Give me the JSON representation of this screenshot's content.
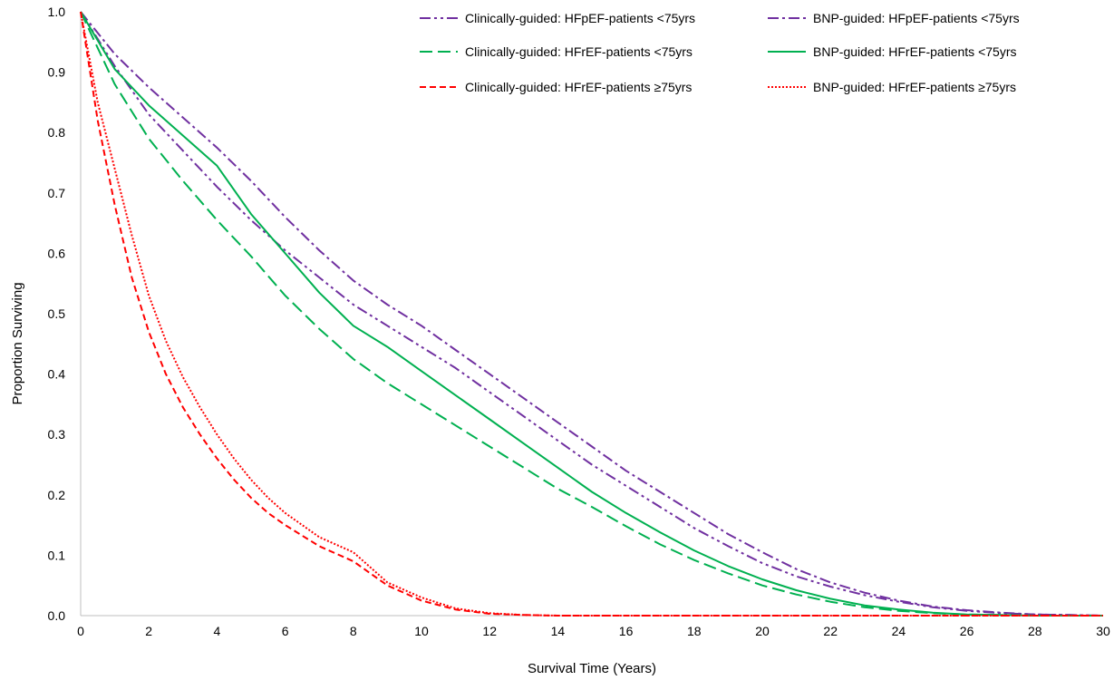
{
  "chart_data": {
    "type": "line",
    "title": "",
    "xlabel": "Survival Time (Years)",
    "ylabel": "Proportion Surviving",
    "xlim": [
      0,
      30
    ],
    "ylim": [
      0,
      1
    ],
    "x_ticks": [
      "0",
      "2",
      "4",
      "6",
      "8",
      "10",
      "12",
      "14",
      "16",
      "18",
      "20",
      "22",
      "24",
      "26",
      "28",
      "30"
    ],
    "y_ticks": [
      "0.0",
      "0.1",
      "0.2",
      "0.3",
      "0.4",
      "0.5",
      "0.6",
      "0.7",
      "0.8",
      "0.9",
      "1.0"
    ],
    "grid": false,
    "legend_position": "top-right",
    "series": [
      {
        "name": "Clinically-guided: HFpEF-patients <75yrs",
        "color": "#7030a0",
        "style": "dash-dot-dot",
        "points": [
          [
            0,
            1.0
          ],
          [
            1,
            0.91
          ],
          [
            2,
            0.83
          ],
          [
            3,
            0.77
          ],
          [
            4,
            0.71
          ],
          [
            5,
            0.655
          ],
          [
            6,
            0.605
          ],
          [
            7,
            0.56
          ],
          [
            8,
            0.515
          ],
          [
            9,
            0.48
          ],
          [
            10,
            0.445
          ],
          [
            11,
            0.41
          ],
          [
            12,
            0.37
          ],
          [
            13,
            0.33
          ],
          [
            14,
            0.29
          ],
          [
            15,
            0.25
          ],
          [
            16,
            0.215
          ],
          [
            17,
            0.18
          ],
          [
            18,
            0.145
          ],
          [
            19,
            0.115
          ],
          [
            20,
            0.087
          ],
          [
            21,
            0.065
          ],
          [
            22,
            0.048
          ],
          [
            23,
            0.034
          ],
          [
            24,
            0.023
          ],
          [
            25,
            0.014
          ],
          [
            26,
            0.008
          ],
          [
            27,
            0.004
          ],
          [
            28,
            0.002
          ],
          [
            29,
            0.001
          ],
          [
            30,
            0.0
          ]
        ]
      },
      {
        "name": "BNP-guided: HFpEF-patients <75yrs",
        "color": "#7030a0",
        "style": "dash-dot",
        "points": [
          [
            0,
            1.0
          ],
          [
            1,
            0.93
          ],
          [
            2,
            0.875
          ],
          [
            3,
            0.825
          ],
          [
            4,
            0.775
          ],
          [
            5,
            0.72
          ],
          [
            6,
            0.66
          ],
          [
            7,
            0.605
          ],
          [
            8,
            0.555
          ],
          [
            9,
            0.515
          ],
          [
            10,
            0.48
          ],
          [
            11,
            0.44
          ],
          [
            12,
            0.4
          ],
          [
            13,
            0.36
          ],
          [
            14,
            0.32
          ],
          [
            15,
            0.28
          ],
          [
            16,
            0.24
          ],
          [
            17,
            0.205
          ],
          [
            18,
            0.17
          ],
          [
            19,
            0.135
          ],
          [
            20,
            0.105
          ],
          [
            21,
            0.077
          ],
          [
            22,
            0.055
          ],
          [
            23,
            0.038
          ],
          [
            24,
            0.025
          ],
          [
            25,
            0.015
          ],
          [
            26,
            0.009
          ],
          [
            27,
            0.005
          ],
          [
            28,
            0.002
          ],
          [
            29,
            0.001
          ],
          [
            30,
            0.0
          ]
        ]
      },
      {
        "name": "Clinically-guided: HFrEF-patients <75yrs",
        "color": "#00b050",
        "style": "long-dash",
        "points": [
          [
            0,
            1.0
          ],
          [
            1,
            0.88
          ],
          [
            2,
            0.79
          ],
          [
            3,
            0.72
          ],
          [
            4,
            0.655
          ],
          [
            5,
            0.595
          ],
          [
            6,
            0.53
          ],
          [
            7,
            0.475
          ],
          [
            8,
            0.425
          ],
          [
            9,
            0.385
          ],
          [
            10,
            0.35
          ],
          [
            11,
            0.315
          ],
          [
            12,
            0.28
          ],
          [
            13,
            0.245
          ],
          [
            14,
            0.21
          ],
          [
            15,
            0.18
          ],
          [
            16,
            0.148
          ],
          [
            17,
            0.118
          ],
          [
            18,
            0.092
          ],
          [
            19,
            0.07
          ],
          [
            20,
            0.05
          ],
          [
            21,
            0.035
          ],
          [
            22,
            0.023
          ],
          [
            23,
            0.014
          ],
          [
            24,
            0.008
          ],
          [
            25,
            0.004
          ],
          [
            26,
            0.002
          ],
          [
            27,
            0.001
          ],
          [
            28,
            0.0
          ],
          [
            29,
            0.0
          ],
          [
            30,
            0.0
          ]
        ]
      },
      {
        "name": "BNP-guided: HFrEF-patients <75yrs",
        "color": "#00b050",
        "style": "solid",
        "points": [
          [
            0,
            1.0
          ],
          [
            1,
            0.905
          ],
          [
            2,
            0.845
          ],
          [
            3,
            0.795
          ],
          [
            4,
            0.745
          ],
          [
            5,
            0.665
          ],
          [
            6,
            0.6
          ],
          [
            7,
            0.535
          ],
          [
            8,
            0.48
          ],
          [
            9,
            0.445
          ],
          [
            10,
            0.405
          ],
          [
            11,
            0.365
          ],
          [
            12,
            0.325
          ],
          [
            13,
            0.285
          ],
          [
            14,
            0.245
          ],
          [
            15,
            0.205
          ],
          [
            16,
            0.17
          ],
          [
            17,
            0.138
          ],
          [
            18,
            0.108
          ],
          [
            19,
            0.082
          ],
          [
            20,
            0.06
          ],
          [
            21,
            0.042
          ],
          [
            22,
            0.028
          ],
          [
            23,
            0.017
          ],
          [
            24,
            0.01
          ],
          [
            25,
            0.005
          ],
          [
            26,
            0.002
          ],
          [
            27,
            0.001
          ],
          [
            28,
            0.0
          ],
          [
            29,
            0.0
          ],
          [
            30,
            0.0
          ]
        ]
      },
      {
        "name": "Clinically-guided: HFrEF-patients ≥75yrs",
        "color": "#ff0000",
        "style": "dash",
        "points": [
          [
            0,
            1.0
          ],
          [
            0.5,
            0.82
          ],
          [
            1,
            0.68
          ],
          [
            1.5,
            0.56
          ],
          [
            2,
            0.47
          ],
          [
            2.5,
            0.4
          ],
          [
            3,
            0.345
          ],
          [
            3.5,
            0.3
          ],
          [
            4,
            0.26
          ],
          [
            4.5,
            0.225
          ],
          [
            5,
            0.195
          ],
          [
            5.5,
            0.17
          ],
          [
            6,
            0.15
          ],
          [
            7,
            0.115
          ],
          [
            8,
            0.09
          ],
          [
            8.5,
            0.07
          ],
          [
            9,
            0.05
          ],
          [
            10,
            0.025
          ],
          [
            11,
            0.01
          ],
          [
            12,
            0.003
          ],
          [
            13,
            0.001
          ],
          [
            14,
            0.0
          ],
          [
            30,
            0.0
          ]
        ]
      },
      {
        "name": "BNP-guided: HFrEF-patients ≥75yrs",
        "color": "#ff0000",
        "style": "dot",
        "points": [
          [
            0,
            1.0
          ],
          [
            0.5,
            0.85
          ],
          [
            1,
            0.74
          ],
          [
            1.5,
            0.63
          ],
          [
            2,
            0.53
          ],
          [
            2.5,
            0.455
          ],
          [
            3,
            0.395
          ],
          [
            3.5,
            0.345
          ],
          [
            4,
            0.3
          ],
          [
            4.5,
            0.26
          ],
          [
            5,
            0.225
          ],
          [
            5.5,
            0.195
          ],
          [
            6,
            0.17
          ],
          [
            7,
            0.13
          ],
          [
            8,
            0.105
          ],
          [
            8.5,
            0.08
          ],
          [
            9,
            0.055
          ],
          [
            10,
            0.03
          ],
          [
            11,
            0.012
          ],
          [
            12,
            0.004
          ],
          [
            13,
            0.001
          ],
          [
            14,
            0.0
          ],
          [
            30,
            0.0
          ]
        ]
      }
    ]
  }
}
